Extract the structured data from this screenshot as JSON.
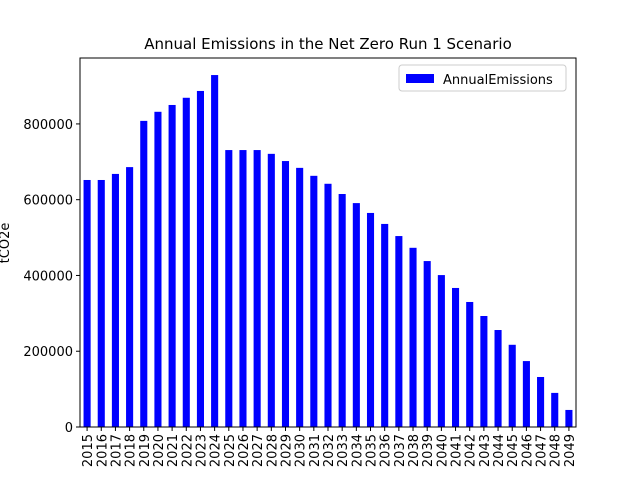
{
  "chart_data": {
    "type": "bar",
    "title": "Annual Emissions in the Net Zero Run 1 Scenario",
    "ylabel": "tCO2e",
    "categories": [
      "2015",
      "2016",
      "2017",
      "2018",
      "2019",
      "2020",
      "2021",
      "2022",
      "2023",
      "2024",
      "2025",
      "2026",
      "2027",
      "2028",
      "2029",
      "2030",
      "2031",
      "2032",
      "2033",
      "2034",
      "2035",
      "2036",
      "2037",
      "2038",
      "2039",
      "2040",
      "2041",
      "2042",
      "2043",
      "2044",
      "2045",
      "2046",
      "2047",
      "2048",
      "2049"
    ],
    "series": [
      {
        "name": "AnnualEmissions",
        "color": "#0000ff",
        "values": [
          652000,
          652000,
          668000,
          686000,
          808000,
          832000,
          850000,
          869000,
          887000,
          929000,
          731000,
          731000,
          731000,
          721000,
          702000,
          684000,
          663000,
          642000,
          615000,
          591000,
          565000,
          536000,
          504000,
          473000,
          438000,
          401000,
          367000,
          330000,
          293000,
          256000,
          217000,
          174000,
          132000,
          90000,
          45000
        ]
      }
    ],
    "ylim": [
      0,
      974000
    ],
    "yticks": [
      0,
      200000,
      400000,
      600000,
      800000
    ],
    "legend": "upper right"
  }
}
